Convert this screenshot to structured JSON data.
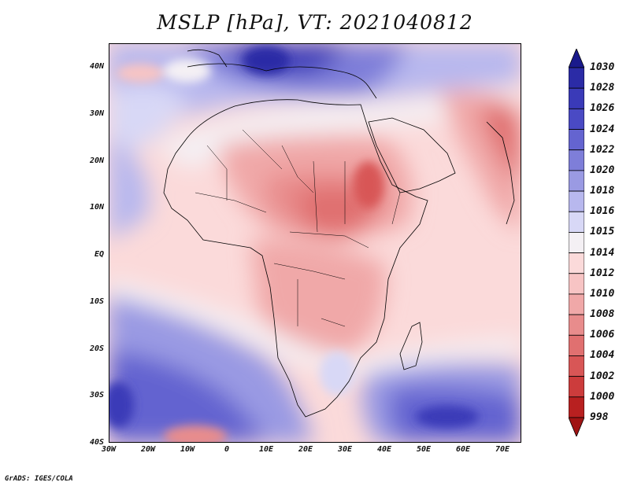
{
  "title": "MSLP [hPa], VT: 2021040812",
  "credit": "GrADS: IGES/COLA",
  "axes": {
    "lat_ticks": [
      "40N",
      "30N",
      "20N",
      "10N",
      "EQ",
      "10S",
      "20S",
      "30S",
      "40S"
    ],
    "lon_ticks": [
      "30W",
      "20W",
      "10W",
      "0",
      "10E",
      "20E",
      "30E",
      "40E",
      "50E",
      "60E",
      "70E"
    ]
  },
  "colorbar": {
    "levels": [
      "1030",
      "1028",
      "1026",
      "1024",
      "1022",
      "1020",
      "1018",
      "1016",
      "1015",
      "1014",
      "1012",
      "1010",
      "1008",
      "1006",
      "1004",
      "1002",
      "1000",
      "998"
    ],
    "colors": [
      "#1a1a8c",
      "#2b2ba6",
      "#3a3ab8",
      "#4a4ac4",
      "#6464d0",
      "#7e7ed9",
      "#9a9ae3",
      "#b8b8ee",
      "#d8d8f6",
      "#f4f0f4",
      "#fbdada",
      "#f7c4c4",
      "#f0a8a8",
      "#e88c8c",
      "#e07070",
      "#d85656",
      "#cc3c3c",
      "#b82020",
      "#a01414"
    ]
  }
}
